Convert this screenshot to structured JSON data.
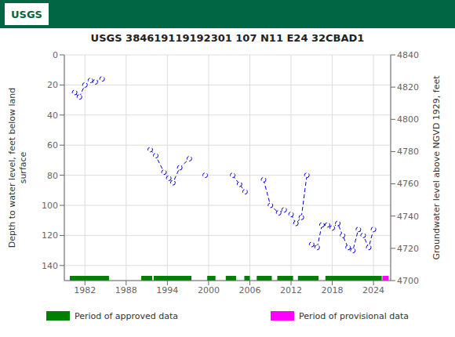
{
  "chart_data": {
    "type": "line",
    "title": "USGS 384619119192301 107  N11 E24 32CBAD1",
    "annotations": [
      {
        "text": "USGS",
        "color": "#006644"
      }
    ],
    "xlim": [
      1979,
      2026.5
    ],
    "xticks": [
      1982,
      1988,
      1994,
      2000,
      2006,
      2012,
      2018,
      2024
    ],
    "ylim": [
      150,
      0
    ],
    "yticks": [
      0,
      20,
      40,
      60,
      80,
      100,
      120,
      140
    ],
    "y2lim": [
      4700,
      4840
    ],
    "y2ticks": [
      4700,
      4720,
      4740,
      4760,
      4780,
      4800,
      4820,
      4840
    ],
    "ylabel": "Depth to water level, feet below land\nsurface",
    "y2label": "Groundwater level above NGVD 1929, feet",
    "grid": true,
    "color": "#0000CC",
    "line_style": "dashed",
    "marker": "o",
    "legend": "bottom",
    "segments": [
      {
        "x": [
          1980.5,
          1981.2,
          1982.0,
          1982.8,
          1983.5,
          1984.5
        ],
        "values": [
          25,
          28,
          20,
          17,
          18,
          16
        ]
      },
      {
        "x": [
          1991.5,
          1992.3,
          1993.5,
          1994.2,
          1994.8,
          1995.8,
          1997.2
        ],
        "values": [
          63,
          67,
          78,
          82,
          85,
          75,
          69
        ]
      },
      {
        "x": [
          1999.5
        ],
        "values": [
          80
        ]
      },
      {
        "x": [
          2003.5,
          2004.5,
          2005.3
        ],
        "values": [
          80,
          86,
          91
        ]
      },
      {
        "x": [
          2008.0,
          2009.0,
          2010.2,
          2011.0
        ],
        "values": [
          83,
          100,
          105,
          103
        ]
      },
      {
        "x": [
          2012.0,
          2012.7,
          2013.5,
          2014.3
        ],
        "values": [
          106,
          112,
          108,
          80
        ]
      },
      {
        "x": [
          2015.0,
          2015.8,
          2016.5,
          2017.3,
          2018.0,
          2018.8,
          2019.5,
          2020.3,
          2021.0,
          2021.8,
          2022.5,
          2023.3,
          2024.0
        ],
        "values": [
          126,
          128,
          113,
          113,
          115,
          112,
          120,
          128,
          130,
          116,
          120,
          128,
          116
        ]
      }
    ],
    "periods": [
      {
        "name": "Period of approved data",
        "color": "#008000",
        "ranges": [
          [
            1979.8,
            1985.5
          ],
          [
            1990.2,
            1991.8
          ],
          [
            1992.0,
            1997.5
          ],
          [
            1999.8,
            2001.0
          ],
          [
            2002.5,
            2004.0
          ],
          [
            2005.2,
            2006.0
          ],
          [
            2007.0,
            2009.2
          ],
          [
            2010.0,
            2012.3
          ],
          [
            2013.0,
            2016.0
          ],
          [
            2017.0,
            2025.2
          ]
        ]
      },
      {
        "name": "Period of provisional data",
        "color": "#FF00FF",
        "ranges": [
          [
            2025.3,
            2026.2
          ]
        ]
      }
    ]
  }
}
